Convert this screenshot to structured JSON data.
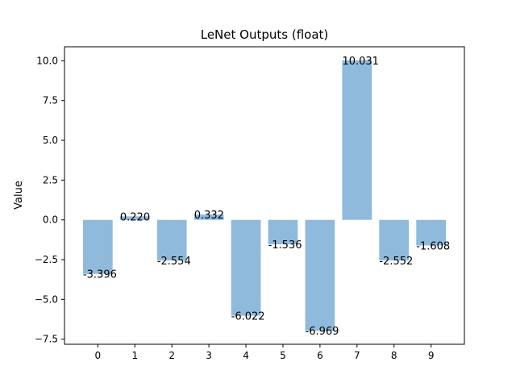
{
  "chart_data": {
    "type": "bar",
    "title": "LeNet Outputs (float)",
    "xlabel": "",
    "ylabel": "Value",
    "categories": [
      "0",
      "1",
      "2",
      "3",
      "4",
      "5",
      "6",
      "7",
      "8",
      "9"
    ],
    "values": [
      -3.396,
      0.22,
      -2.554,
      0.332,
      -6.022,
      -1.536,
      -6.969,
      10.031,
      -2.552,
      -1.608
    ],
    "value_labels": [
      "-3.396",
      "0.220",
      "-2.554",
      "0.332",
      "-6.022",
      "-1.536",
      "-6.969",
      "10.031",
      "-2.552",
      "-1.608"
    ],
    "yticks": [
      -7.5,
      -5.0,
      -2.5,
      0.0,
      2.5,
      5.0,
      7.5,
      10.0
    ],
    "ytick_labels": [
      "−7.5",
      "−5.0",
      "−2.5",
      "0.0",
      "2.5",
      "5.0",
      "7.5",
      "10.0"
    ],
    "ylim": [
      -7.819,
      10.881
    ],
    "bar_color": "#8fbadb",
    "grid": false,
    "legend": "none"
  }
}
